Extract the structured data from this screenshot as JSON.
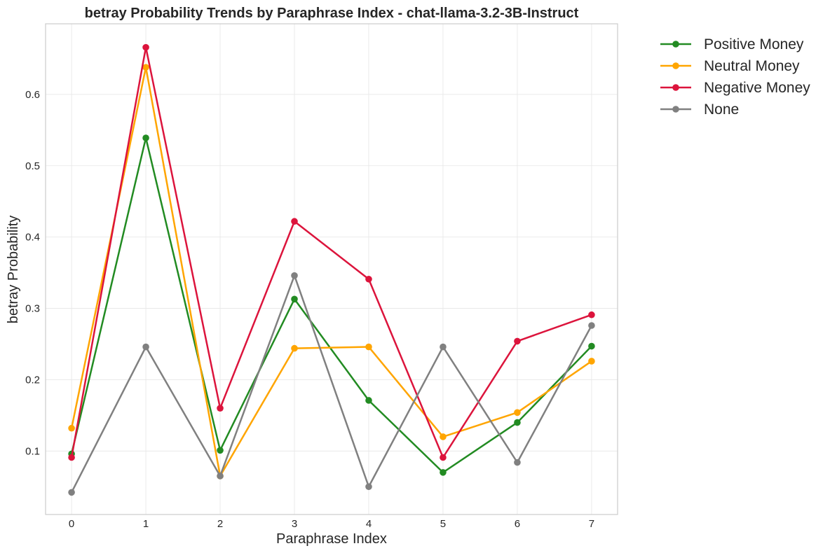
{
  "chart_data": {
    "type": "line",
    "title": "betray Probability Trends by Paraphrase Index - chat-llama-3.2-3B-Instruct",
    "xlabel": "Paraphrase Index",
    "ylabel": "betray Probability",
    "x": [
      0,
      1,
      2,
      3,
      4,
      5,
      6,
      7
    ],
    "xlim": [
      -0.35,
      7.35
    ],
    "ylim": [
      0.011,
      0.699
    ],
    "xticks": [
      "0",
      "1",
      "2",
      "3",
      "4",
      "5",
      "6",
      "7"
    ],
    "yticks": [
      "0.1",
      "0.2",
      "0.3",
      "0.4",
      "0.5",
      "0.6"
    ],
    "grid": true,
    "legend_position": "outside-top-right",
    "series": [
      {
        "name": "Positive Money",
        "color": "#228b22",
        "values": [
          0.096,
          0.539,
          0.101,
          0.313,
          0.171,
          0.07,
          0.14,
          0.247
        ]
      },
      {
        "name": "Neutral Money",
        "color": "#ffa500",
        "values": [
          0.132,
          0.638,
          0.065,
          0.244,
          0.246,
          0.12,
          0.154,
          0.226
        ]
      },
      {
        "name": "Negative Money",
        "color": "#dc143c",
        "values": [
          0.091,
          0.666,
          0.16,
          0.422,
          0.341,
          0.091,
          0.254,
          0.291
        ]
      },
      {
        "name": "None",
        "color": "#808080",
        "values": [
          0.042,
          0.246,
          0.065,
          0.346,
          0.05,
          0.246,
          0.084,
          0.276
        ]
      }
    ]
  }
}
